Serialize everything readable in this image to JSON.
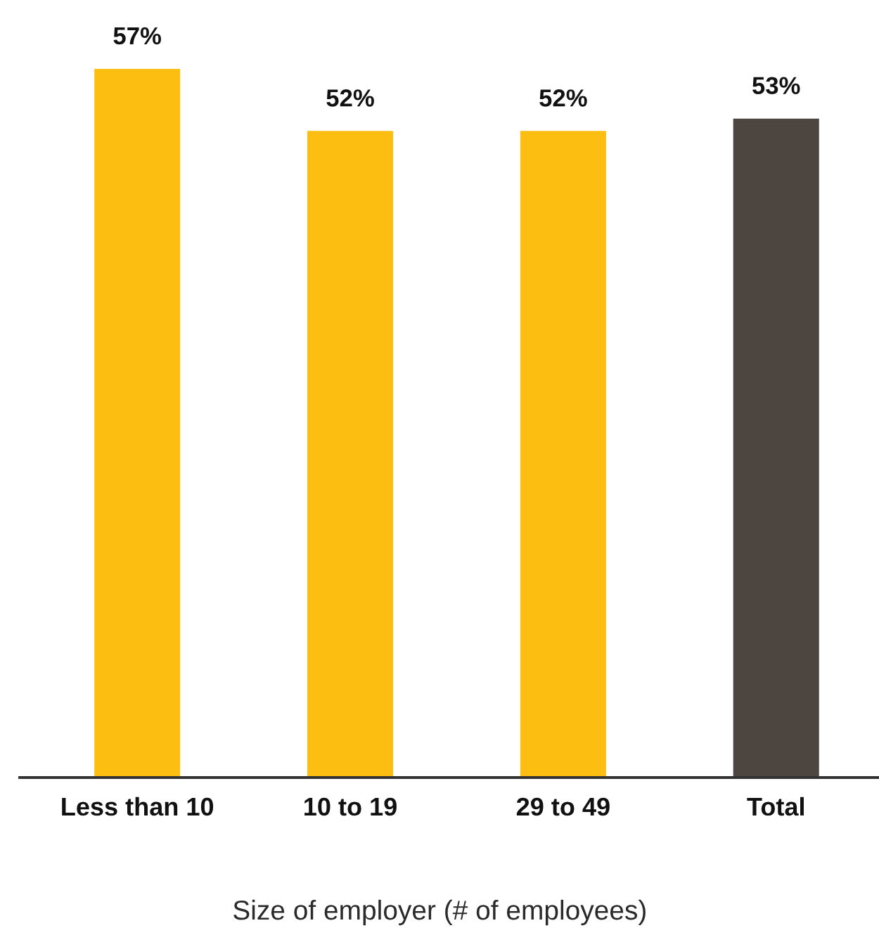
{
  "chart_data": {
    "type": "bar",
    "categories": [
      "Less than 10",
      "10 to 19",
      "29 to 49",
      "Total"
    ],
    "values": [
      57,
      52,
      52,
      53
    ],
    "colors": [
      "#fdbe12",
      "#fdbe12",
      "#fdbe12",
      "#4d4540"
    ],
    "value_labels": [
      "57%",
      "52%",
      "52%",
      "53%"
    ],
    "xlabel": "Size of employer (# of employees)",
    "tick_labels": "x"
  }
}
